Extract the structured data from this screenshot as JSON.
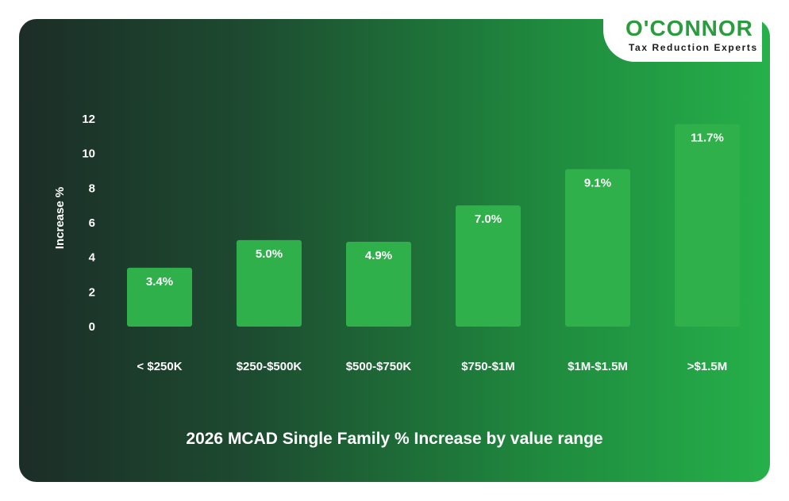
{
  "brand": {
    "name": "O'CONNOR",
    "tagline": "Tax Reduction Experts"
  },
  "chart_data": {
    "type": "bar",
    "title": "2026 MCAD Single Family % Increase by value range",
    "xlabel": "",
    "ylabel": "Increase %",
    "ylim": [
      0,
      12
    ],
    "yticks": [
      0,
      2,
      4,
      6,
      8,
      10,
      12
    ],
    "grid": false,
    "categories": [
      "< $250K",
      "$250-$500K",
      "$500-$750K",
      "$750-$1M",
      "$1M-$1.5M",
      ">$1.5M"
    ],
    "values": [
      3.4,
      5.0,
      4.9,
      7.0,
      9.1,
      11.7
    ],
    "data_labels": [
      "3.4%",
      "5.0%",
      "4.9%",
      "7.0%",
      "9.1%",
      "11.7%"
    ],
    "bar_color": "#2fb04a"
  }
}
